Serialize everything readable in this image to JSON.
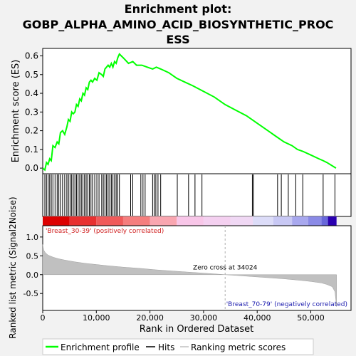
{
  "chart_data": {
    "type": "line",
    "title": "Enrichment plot:\nGOBP_ALPHA_AMINO_ACID_BIOSYNTHETIC_PROC\nESS",
    "title_lines": [
      "Enrichment plot:",
      "GOBP_ALPHA_AMINO_ACID_BIOSYNTHETIC_PROC",
      "ESS"
    ],
    "colors": {
      "profile": "#00ff00",
      "hits": "#000000",
      "metric": "#c0c0c0",
      "background": "#f2f2f2",
      "pos_label": "#d02020",
      "neg_label": "#2020b0"
    },
    "es_panel": {
      "ylabel": "Enrichment score (ES)",
      "ylim": [
        -0.03,
        0.64
      ],
      "yticks": [
        0.0,
        0.1,
        0.2,
        0.3,
        0.4,
        0.5,
        0.6
      ],
      "ytick_labels": [
        "0.0",
        "0.1",
        "0.2",
        "0.3",
        "0.4",
        "0.5",
        "0.6"
      ],
      "profile": {
        "name": "Enrichment profile",
        "x": [
          0,
          400,
          700,
          1000,
          1300,
          1600,
          1900,
          2300,
          2700,
          3000,
          3300,
          3700,
          4100,
          4500,
          4800,
          5100,
          5400,
          5700,
          6000,
          6300,
          6600,
          6900,
          7200,
          7500,
          7800,
          8100,
          8400,
          8700,
          9000,
          9300,
          9700,
          10100,
          10500,
          11000,
          11300,
          11600,
          11900,
          12200,
          12500,
          12800,
          13100,
          13400,
          13700,
          14000,
          14300,
          15000,
          16000,
          16800,
          17500,
          18500,
          19500,
          20500,
          21200,
          22000,
          23500,
          25000,
          26500,
          28000,
          30000,
          32000,
          34000,
          36000,
          38000,
          40000,
          42000,
          43500,
          45000,
          46500,
          47500,
          48500,
          50000,
          51500,
          52300,
          53000,
          54700
        ],
        "y": [
          0.0,
          -0.01,
          0.03,
          0.02,
          0.05,
          0.04,
          0.12,
          0.11,
          0.14,
          0.13,
          0.19,
          0.2,
          0.18,
          0.22,
          0.26,
          0.25,
          0.3,
          0.29,
          0.3,
          0.34,
          0.33,
          0.37,
          0.36,
          0.4,
          0.39,
          0.43,
          0.42,
          0.46,
          0.47,
          0.46,
          0.48,
          0.47,
          0.51,
          0.5,
          0.49,
          0.53,
          0.54,
          0.55,
          0.54,
          0.56,
          0.54,
          0.57,
          0.56,
          0.59,
          0.61,
          0.59,
          0.56,
          0.57,
          0.55,
          0.55,
          0.54,
          0.53,
          0.54,
          0.53,
          0.51,
          0.48,
          0.46,
          0.44,
          0.41,
          0.38,
          0.34,
          0.31,
          0.28,
          0.24,
          0.2,
          0.17,
          0.14,
          0.12,
          0.1,
          0.09,
          0.07,
          0.05,
          0.04,
          0.03,
          0.0
        ]
      }
    },
    "hits": {
      "name": "Hits",
      "positions": [
        400,
        700,
        1000,
        1300,
        1600,
        1900,
        2300,
        2700,
        3000,
        3300,
        3700,
        4100,
        4500,
        4800,
        5100,
        5400,
        5700,
        6000,
        6300,
        6600,
        6900,
        7200,
        7500,
        7800,
        8100,
        8400,
        8700,
        9000,
        9300,
        9700,
        10100,
        10500,
        11000,
        11300,
        11600,
        11900,
        12200,
        12500,
        12800,
        13100,
        13400,
        13700,
        14000,
        14300,
        16400,
        16800,
        18300,
        18700,
        19100,
        20500,
        20800,
        21100,
        21500,
        22000,
        25100,
        27200,
        28400,
        29700,
        39100,
        39300,
        43800,
        44500,
        45800,
        47200,
        48500,
        52300,
        54500
      ]
    },
    "rank_panel": {
      "ylabel": "Ranked list metric (Signal2Noise)",
      "xlabel": "Rank in Ordered Dataset",
      "ylim": [
        -0.95,
        1.3
      ],
      "yticks": [
        -0.5,
        0.0,
        0.5,
        1.0
      ],
      "ytick_labels": [
        "-0.5",
        "0.0",
        "0.5",
        "1.0"
      ],
      "metric_name": "Ranking metric scores",
      "metric_curve": {
        "x": [
          0,
          200,
          500,
          1000,
          2000,
          3000,
          4000,
          6000,
          8000,
          10000,
          12000,
          15000,
          18000,
          21000,
          24000,
          27000,
          30000,
          33000,
          34024,
          36000,
          39000,
          42000,
          45000,
          48000,
          50000,
          52000,
          53000,
          54000,
          54500,
          54800
        ],
        "y": [
          0.8,
          0.65,
          0.58,
          0.52,
          0.46,
          0.42,
          0.39,
          0.34,
          0.3,
          0.27,
          0.24,
          0.2,
          0.17,
          0.13,
          0.1,
          0.07,
          0.04,
          0.01,
          0.0,
          -0.02,
          -0.05,
          -0.08,
          -0.11,
          -0.15,
          -0.18,
          -0.22,
          -0.26,
          -0.32,
          -0.45,
          -0.85
        ]
      },
      "zero_cross_label": "Zero cross at 34024",
      "zero_cross": 34024,
      "pos_label": "'Breast_30-39' (positively correlated)",
      "neg_label": "'Breast_70-79' (negatively correlated)"
    },
    "xlim": [
      0,
      57500
    ],
    "xticks": [
      0,
      10000,
      20000,
      30000,
      40000,
      50000
    ],
    "xtick_labels": [
      "0",
      "10,000",
      "20,000",
      "30,000",
      "40,000",
      "50,000"
    ],
    "heatbar": {
      "segments": [
        {
          "from": 0,
          "to": 5000,
          "color": "#dc0000"
        },
        {
          "from": 5000,
          "to": 10000,
          "color": "#e83030"
        },
        {
          "from": 10000,
          "to": 15000,
          "color": "#f05a5a"
        },
        {
          "from": 15000,
          "to": 20000,
          "color": "#f57e7e"
        },
        {
          "from": 20000,
          "to": 25000,
          "color": "#f9a6b0"
        },
        {
          "from": 25000,
          "to": 30000,
          "color": "#f8c6e8"
        },
        {
          "from": 30000,
          "to": 35000,
          "color": "#f4d0f0"
        },
        {
          "from": 35000,
          "to": 39200,
          "color": "#f0d8f4"
        },
        {
          "from": 39200,
          "to": 43000,
          "color": "#dcdcf8"
        },
        {
          "from": 43000,
          "to": 46500,
          "color": "#c8c8f4"
        },
        {
          "from": 46500,
          "to": 49500,
          "color": "#a8a8ee"
        },
        {
          "from": 49500,
          "to": 52000,
          "color": "#8a8ae6"
        },
        {
          "from": 52000,
          "to": 53200,
          "color": "#6868da"
        },
        {
          "from": 53200,
          "to": 54800,
          "color": "#2a00b0"
        }
      ]
    },
    "legend": {
      "placement": "bottom",
      "entries": [
        {
          "label": "Enrichment profile",
          "color": "#00ff00"
        },
        {
          "label": "Hits",
          "color": "#000000"
        },
        {
          "label": "Ranking metric scores",
          "color": "#c0c0c0"
        }
      ]
    }
  }
}
